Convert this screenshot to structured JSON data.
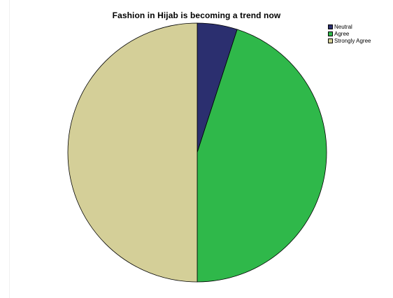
{
  "chart_data": {
    "type": "pie",
    "title": "Fashion in Hijab is becoming a trend now",
    "categories": [
      "Neutral",
      "Agree",
      "Strongly Agree"
    ],
    "values": [
      5,
      45,
      50
    ],
    "colors": [
      "#2b2f6f",
      "#2fb84a",
      "#d4cf98"
    ],
    "legend": "top-right",
    "start_angle": "12 o'clock",
    "direction": "clockwise"
  }
}
